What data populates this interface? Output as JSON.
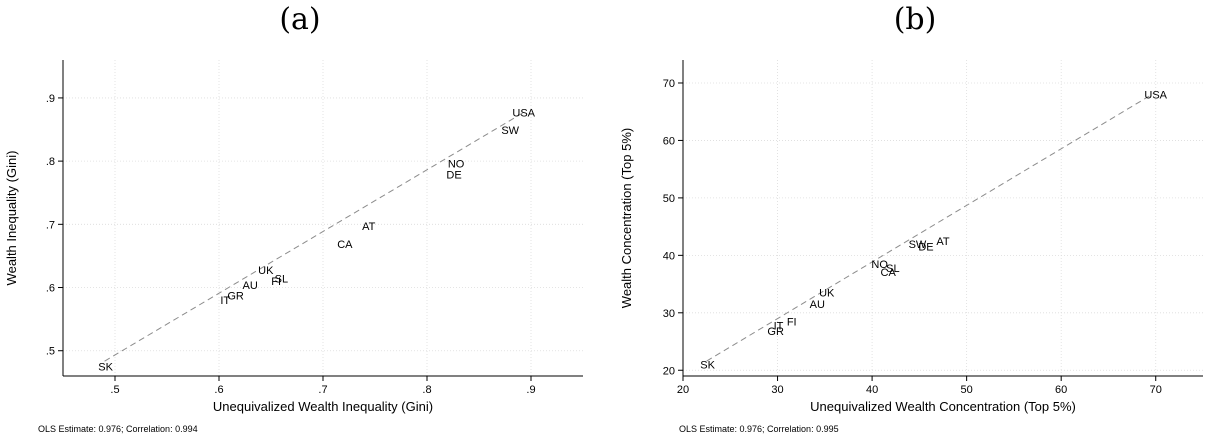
{
  "colors": {
    "points": "#000000",
    "fit_line": "#8c8c8c",
    "grid": "#dcdcdc",
    "axis": "#000000"
  },
  "chart_data": [
    {
      "type": "scatter",
      "panel_label": "(a)",
      "xlabel": "Unequivalized Wealth Inequality (Gini)",
      "ylabel": "Wealth Inequality (Gini)",
      "xlim": [
        0.45,
        0.95
      ],
      "ylim": [
        0.46,
        0.96
      ],
      "xticks": [
        0.5,
        0.6,
        0.7,
        0.8,
        0.9
      ],
      "xtick_labels": [
        ".5",
        ".6",
        ".7",
        ".8",
        ".9"
      ],
      "yticks": [
        0.5,
        0.6,
        0.7,
        0.8,
        0.9
      ],
      "ytick_labels": [
        ".5",
        ".6",
        ".7",
        ".8",
        ".9"
      ],
      "grid": true,
      "marker": "country-label",
      "points": [
        {
          "label": "USA",
          "x": 0.893,
          "y": 0.877
        },
        {
          "label": "SW",
          "x": 0.88,
          "y": 0.849
        },
        {
          "label": "NO",
          "x": 0.828,
          "y": 0.796
        },
        {
          "label": "DE",
          "x": 0.826,
          "y": 0.779
        },
        {
          "label": "AT",
          "x": 0.744,
          "y": 0.697
        },
        {
          "label": "CA",
          "x": 0.721,
          "y": 0.669
        },
        {
          "label": "UK",
          "x": 0.645,
          "y": 0.628
        },
        {
          "label": "SL",
          "x": 0.66,
          "y": 0.614
        },
        {
          "label": "FI",
          "x": 0.655,
          "y": 0.61
        },
        {
          "label": "AU",
          "x": 0.63,
          "y": 0.604
        },
        {
          "label": "GR",
          "x": 0.616,
          "y": 0.587
        },
        {
          "label": "IT",
          "x": 0.606,
          "y": 0.58
        },
        {
          "label": "SK",
          "x": 0.491,
          "y": 0.475
        }
      ],
      "fit_line": {
        "style": "dashed",
        "from": [
          0.49,
          0.4835
        ],
        "to": [
          0.893,
          0.8771
        ]
      },
      "note": "OLS Estimate: 0.976; Correlation: 0.994"
    },
    {
      "type": "scatter",
      "panel_label": "(b)",
      "xlabel": "Unequivalized Wealth Concentration (Top 5%)",
      "ylabel": "Wealth Concentration (Top 5%)",
      "xlim": [
        20,
        75
      ],
      "ylim": [
        19,
        74
      ],
      "xticks": [
        20,
        30,
        40,
        50,
        60,
        70
      ],
      "xtick_labels": [
        "20",
        "30",
        "40",
        "50",
        "60",
        "70"
      ],
      "yticks": [
        20,
        30,
        40,
        50,
        60,
        70
      ],
      "ytick_labels": [
        "20",
        "30",
        "40",
        "50",
        "60",
        "70"
      ],
      "grid": true,
      "marker": "country-label",
      "points": [
        {
          "label": "USA",
          "x": 70.0,
          "y": 68.0
        },
        {
          "label": "AT",
          "x": 47.5,
          "y": 42.5
        },
        {
          "label": "SW",
          "x": 44.8,
          "y": 42.0
        },
        {
          "label": "DE",
          "x": 45.7,
          "y": 41.5
        },
        {
          "label": "NO",
          "x": 40.8,
          "y": 38.5
        },
        {
          "label": "SL",
          "x": 42.2,
          "y": 37.8
        },
        {
          "label": "CA",
          "x": 41.7,
          "y": 37.1
        },
        {
          "label": "UK",
          "x": 35.2,
          "y": 33.5
        },
        {
          "label": "AU",
          "x": 34.2,
          "y": 31.5
        },
        {
          "label": "FI",
          "x": 31.5,
          "y": 28.5
        },
        {
          "label": "IT",
          "x": 30.1,
          "y": 27.8
        },
        {
          "label": "GR",
          "x": 29.8,
          "y": 26.8
        },
        {
          "label": "SK",
          "x": 22.6,
          "y": 21.0
        }
      ],
      "fit_line": {
        "style": "dashed",
        "from": [
          22.5,
          21.6
        ],
        "to": [
          69.8,
          68.2
        ]
      },
      "note": "OLS Estimate: 0.976; Correlation: 0.995"
    }
  ]
}
